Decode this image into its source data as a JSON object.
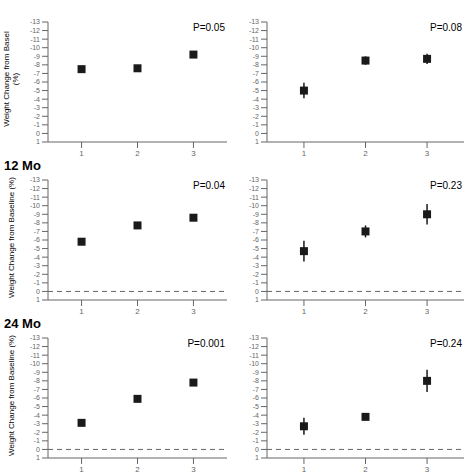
{
  "chart_data": [
    {
      "type": "scatter",
      "ylabel": "Weight Change from Basel\n(%)",
      "x": [
        1,
        2,
        3
      ],
      "values": [
        -7.5,
        -7.6,
        -9.2
      ],
      "errors": [
        0.3,
        0.2,
        0.25
      ],
      "annotations": [
        "P=0.05"
      ],
      "xlim": [
        0.4,
        3.6
      ],
      "xticks": [
        1,
        2,
        3
      ],
      "ylim": [
        1,
        -13
      ],
      "yticks": [
        1,
        0,
        -1,
        -2,
        -3,
        -4,
        -5,
        -6,
        -7,
        -8,
        -9,
        -10,
        -11,
        -12,
        -13
      ],
      "color": "#1a1a1a",
      "marker": "square",
      "grid": false
    },
    {
      "type": "scatter",
      "x": [
        1,
        2,
        3
      ],
      "values": [
        -5.0,
        -8.5,
        -8.7
      ],
      "errors": [
        0.9,
        0.5,
        0.6
      ],
      "annotations": [
        "P=0.08"
      ],
      "xlim": [
        0.4,
        3.6
      ],
      "xticks": [
        1,
        2,
        3
      ],
      "ylim": [
        1,
        -13
      ],
      "yticks": [
        1,
        0,
        -1,
        -2,
        -3,
        -4,
        -5,
        -6,
        -7,
        -8,
        -9,
        -10,
        -11,
        -12,
        -13
      ],
      "color": "#1a1a1a",
      "marker": "square",
      "grid": false
    },
    {
      "type": "scatter",
      "title": "12 Mo",
      "ylabel": "Weight Change from Baseline (%)",
      "x": [
        1,
        2,
        3
      ],
      "values": [
        -5.8,
        -7.7,
        -8.6
      ],
      "errors": [
        0.4,
        0.35,
        0.35
      ],
      "annotations": [
        "P=0.04"
      ],
      "hline": 0,
      "xlim": [
        0.4,
        3.6
      ],
      "xticks": [
        1,
        2,
        3
      ],
      "ylim": [
        1,
        -13
      ],
      "yticks": [
        1,
        0,
        -1,
        -2,
        -3,
        -4,
        -5,
        -6,
        -7,
        -8,
        -9,
        -10,
        -11,
        -12,
        -13
      ],
      "color": "#1a1a1a",
      "marker": "square",
      "grid": false
    },
    {
      "type": "scatter",
      "x": [
        1,
        2,
        3
      ],
      "values": [
        -4.7,
        -7.0,
        -9.0
      ],
      "errors": [
        1.2,
        0.7,
        1.2
      ],
      "annotations": [
        "P=0.23"
      ],
      "hline": 0,
      "xlim": [
        0.4,
        3.6
      ],
      "xticks": [
        1,
        2,
        3
      ],
      "ylim": [
        1,
        -13
      ],
      "yticks": [
        1,
        0,
        -1,
        -2,
        -3,
        -4,
        -5,
        -6,
        -7,
        -8,
        -9,
        -10,
        -11,
        -12,
        -13
      ],
      "color": "#1a1a1a",
      "marker": "square",
      "grid": false
    },
    {
      "type": "scatter",
      "title": "24 Mo",
      "ylabel": "Weight Change from Baseline (%)",
      "x": [
        1,
        2,
        3
      ],
      "values": [
        -3.1,
        -5.9,
        -7.8
      ],
      "errors": [
        0.3,
        0.35,
        0.25
      ],
      "annotations": [
        "P=0.001"
      ],
      "hline": 0,
      "xlim": [
        0.4,
        3.6
      ],
      "xticks": [
        1,
        2,
        3
      ],
      "ylim": [
        1,
        -13
      ],
      "yticks": [
        1,
        0,
        -1,
        -2,
        -3,
        -4,
        -5,
        -6,
        -7,
        -8,
        -9,
        -10,
        -11,
        -12,
        -13
      ],
      "color": "#1a1a1a",
      "marker": "square",
      "grid": false
    },
    {
      "type": "scatter",
      "x": [
        1,
        2,
        3
      ],
      "values": [
        -2.7,
        -3.8,
        -8.0
      ],
      "errors": [
        1.0,
        0.4,
        1.3
      ],
      "annotations": [
        "P=0.24"
      ],
      "hline": 0,
      "xlim": [
        0.4,
        3.6
      ],
      "xticks": [
        1,
        2,
        3
      ],
      "ylim": [
        1,
        -13
      ],
      "yticks": [
        1,
        0,
        -1,
        -2,
        -3,
        -4,
        -5,
        -6,
        -7,
        -8,
        -9,
        -10,
        -11,
        -12,
        -13
      ],
      "color": "#1a1a1a",
      "marker": "square",
      "grid": false
    }
  ]
}
